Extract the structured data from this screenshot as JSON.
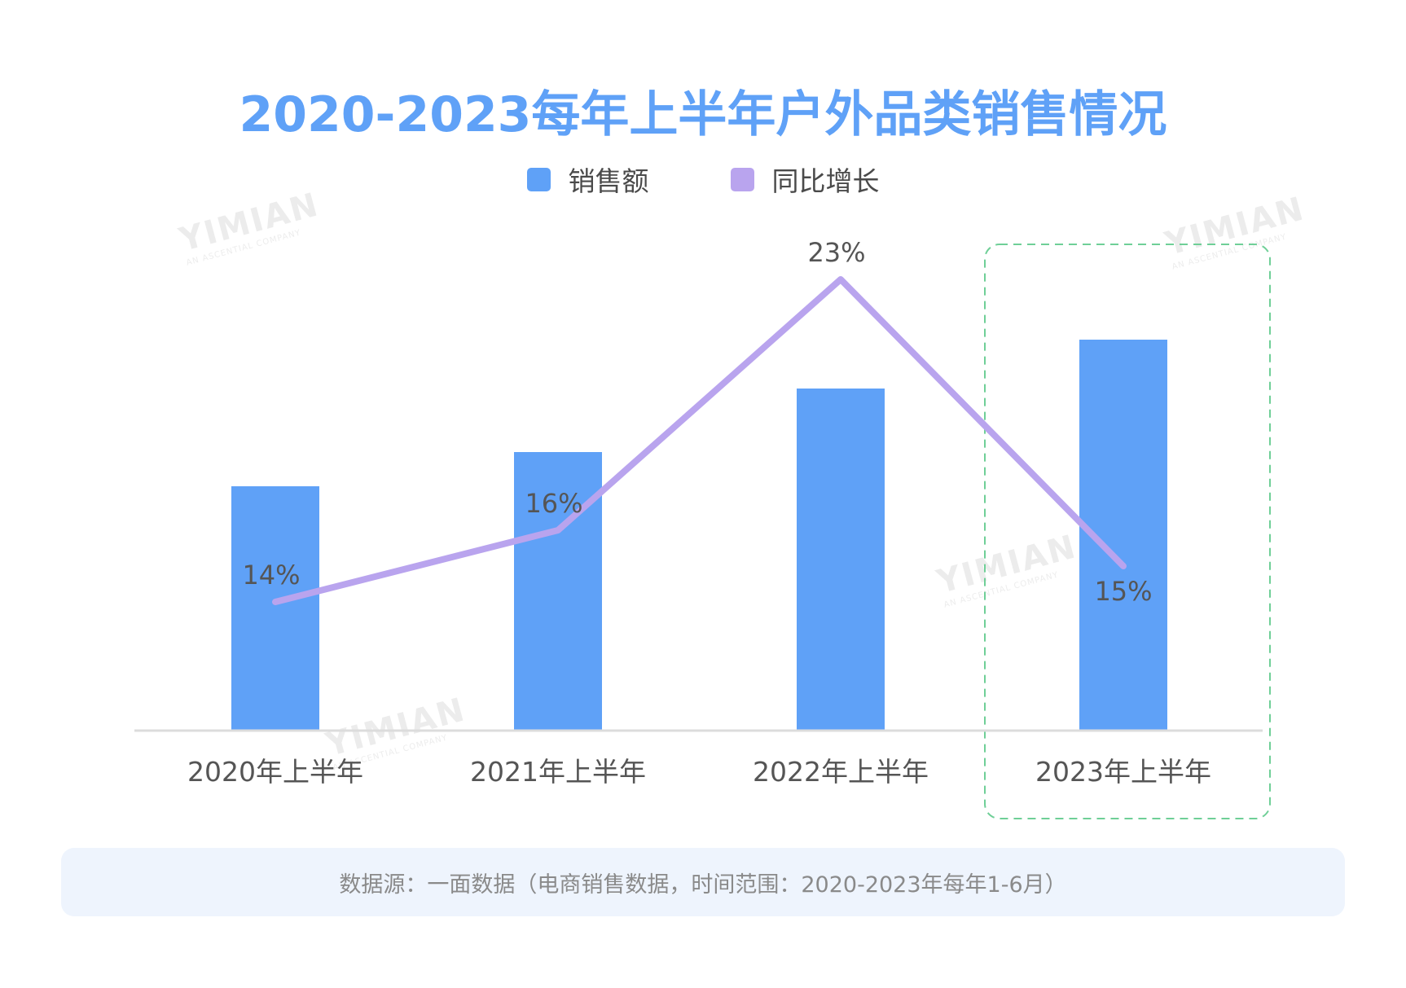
{
  "title": "2020-2023每年上半年户外品类销售情况",
  "legend": [
    {
      "label": "销售额",
      "color": "#5fa1f7"
    },
    {
      "label": "同比增长",
      "color": "#b9a4ee"
    }
  ],
  "chart_data": {
    "type": "bar",
    "categories": [
      "2020年上半年",
      "2021年上半年",
      "2022年上半年",
      "2023年上半年"
    ],
    "series": [
      {
        "name": "销售额",
        "type": "bar",
        "values": [
          100,
          114,
          140,
          160
        ],
        "color": "#5fa1f7"
      },
      {
        "name": "同比增长",
        "type": "line",
        "values": [
          14,
          16,
          23,
          15
        ],
        "labels": [
          "14%",
          "16%",
          "23%",
          "15%"
        ],
        "color": "#b9a4ee"
      }
    ],
    "highlight_category": "2023年上半年",
    "highlight_color": "#6fcf97"
  },
  "footer": {
    "text": "数据源：一面数据（电商销售数据，时间范围：2020-2023年每年1-6月）"
  },
  "watermark": {
    "text": "YIMIAN",
    "subtext": "AN ASCENTIAL COMPANY"
  }
}
